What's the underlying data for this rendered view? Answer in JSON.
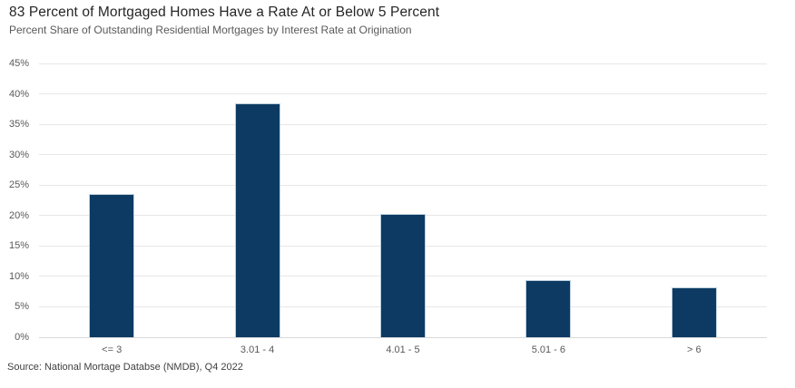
{
  "chart_data": {
    "type": "bar",
    "title": "83 Percent of Mortgaged Homes Have a Rate At or Below 5 Percent",
    "subtitle": "Percent Share of Outstanding Residential Mortgages by Interest Rate at Origination",
    "source": "Source: National Mortage Databse (NMDB), Q4 2022",
    "categories": [
      "<= 3",
      "3.01 - 4",
      "4.01 - 5",
      "5.01 - 6",
      "> 6"
    ],
    "values": [
      23.5,
      38.5,
      20.3,
      9.4,
      8.2
    ],
    "xlabel": "",
    "ylabel": "",
    "ylim": [
      0,
      45
    ],
    "ytick_step": 5,
    "ytick_labels": [
      "0%",
      "5%",
      "10%",
      "15%",
      "20%",
      "25%",
      "30%",
      "35%",
      "40%",
      "45%"
    ],
    "legend_position": "none",
    "grid": "horizontal",
    "colors": {
      "bar_fill": "#0c3a63",
      "bar_edge": "#bccfde",
      "gridline": "#e7e7e7",
      "axis_line": "#d9d9d9",
      "title_text": "#262626",
      "subtitle_text": "#595959",
      "tick_text": "#595959",
      "source_text": "#404040",
      "background": "#ffffff"
    }
  }
}
